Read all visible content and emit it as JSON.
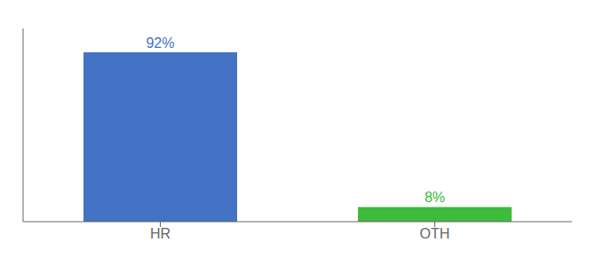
{
  "chart_data": {
    "type": "bar",
    "categories": [
      "HR",
      "OTH"
    ],
    "values": [
      92,
      8
    ],
    "value_labels": [
      "92%",
      "8%"
    ],
    "colors": [
      "#4472c4",
      "#3dbb3d"
    ],
    "ylim": [
      0,
      105
    ],
    "grid": false,
    "data_labels": true,
    "tick_labels": "x"
  }
}
